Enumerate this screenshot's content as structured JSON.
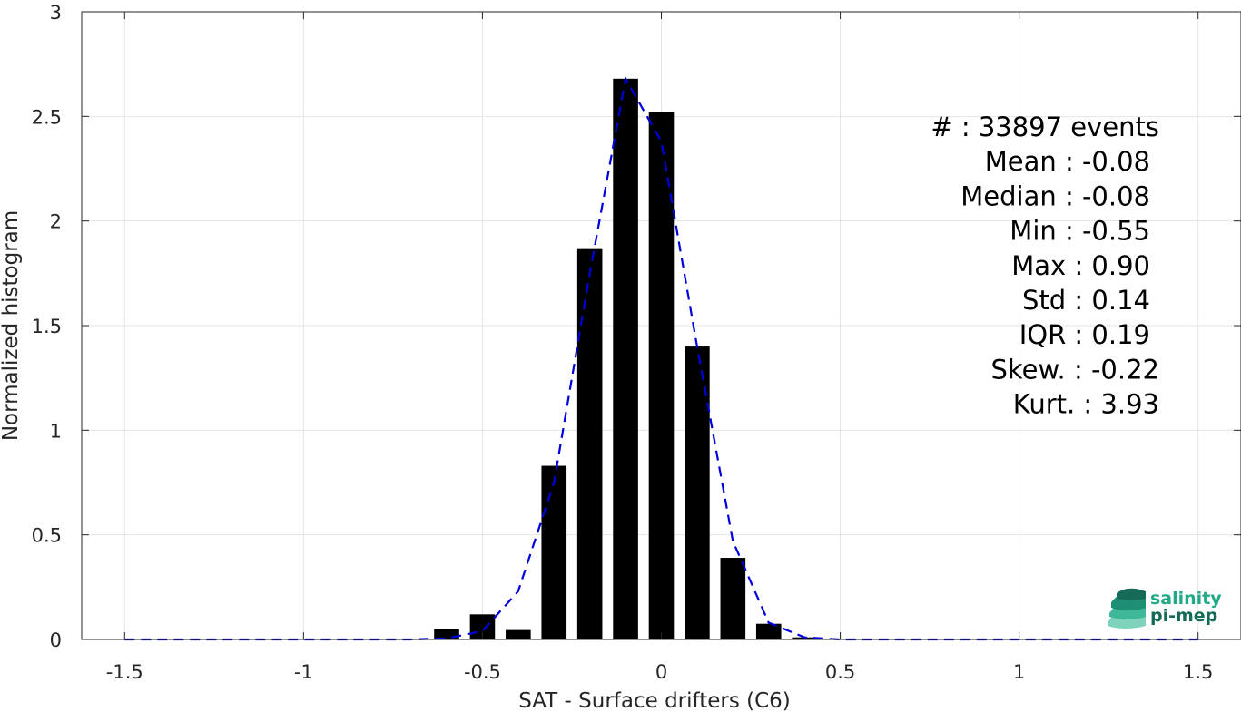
{
  "chart_data": {
    "type": "bar",
    "title": "",
    "xlabel": "SAT - Surface drifters (C6)",
    "ylabel": "Normalized histogram",
    "xlim": [
      -1.62,
      1.62
    ],
    "ylim": [
      0,
      3
    ],
    "grid": true,
    "xticks": [
      -1.5,
      -1,
      -0.5,
      0,
      0.5,
      1,
      1.5
    ],
    "xtick_labels": [
      "-1.5",
      "-1",
      "-0.5",
      "0",
      "0.5",
      "1",
      "1.5"
    ],
    "yticks": [
      0,
      0.5,
      1,
      1.5,
      2,
      2.5,
      3
    ],
    "ytick_labels": [
      "0",
      "0.5",
      "1",
      "1.5",
      "2",
      "2.5",
      "3"
    ],
    "bar_width": 0.07,
    "bars": {
      "x": [
        -0.6,
        -0.5,
        -0.4,
        -0.3,
        -0.2,
        -0.1,
        0.0,
        0.1,
        0.2,
        0.3,
        0.4
      ],
      "values": [
        0.05,
        0.12,
        0.045,
        0.83,
        1.87,
        2.68,
        2.52,
        1.4,
        0.39,
        0.075,
        0.01
      ],
      "color": "#000000"
    },
    "fit_curve": {
      "style": "dashed",
      "color": "#0000dd",
      "x": [
        -1.5,
        -1.4,
        -1.3,
        -1.2,
        -1.1,
        -1.0,
        -0.9,
        -0.8,
        -0.7,
        -0.6,
        -0.5,
        -0.4,
        -0.3,
        -0.2,
        -0.1,
        0.0,
        0.1,
        0.2,
        0.3,
        0.4,
        0.5,
        0.6,
        0.7,
        0.8,
        0.9,
        1.0,
        1.1,
        1.2,
        1.3,
        1.4,
        1.5
      ],
      "y": [
        0,
        0,
        0,
        0,
        0,
        0,
        0,
        0,
        0,
        0.005,
        0.04,
        0.23,
        0.75,
        1.75,
        2.68,
        2.38,
        1.4,
        0.47,
        0.08,
        0.01,
        0,
        0,
        0,
        0,
        0,
        0,
        0,
        0,
        0,
        0,
        0
      ]
    },
    "annotations": [
      "#  : 33897 events",
      "Mean : -0.08",
      "Median : -0.08",
      "Min : -0.55",
      "Max : 0.90",
      "Std : 0.14",
      "IQR : 0.19",
      "Skew. : -0.22",
      "Kurt. : 3.93"
    ]
  },
  "logo": {
    "line1": "salinity",
    "line2": "pi-mep",
    "color1": "#22aa88",
    "color2": "#156b57"
  }
}
